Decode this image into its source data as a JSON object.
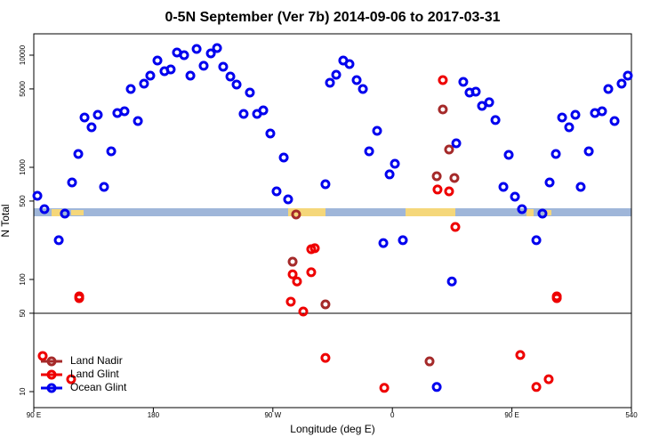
{
  "chart_data": {
    "type": "scatter",
    "title": "0-5N September (Ver 7b)   2014-09-06 to 2017-03-31",
    "x_label": "Longitude (deg E)",
    "y_label": "N Total",
    "ylog": true,
    "legend": "bottom-left",
    "hline": 50,
    "xlim": [
      90,
      540
    ],
    "xticks": [
      {
        "value": 90,
        "label": "90 E"
      },
      180,
      {
        "value": 270,
        "label": "90 W"
      },
      {
        "value": 360,
        "label": "0"
      },
      {
        "value": 450,
        "label": "90 E"
      },
      540
    ],
    "ylim": [
      7.2,
      15500
    ],
    "yticks": [
      10,
      50,
      100,
      500,
      1000,
      5000,
      10000
    ],
    "series": [
      {
        "name": "Land Nadir",
        "color": "#a52a2a",
        "x": [
          287.5,
          284.9,
          309.6,
          388,
          393.4,
          406.7,
          398,
          402.7
        ],
        "values": [
          380,
          144,
          60,
          18.6,
          833,
          803,
          3280,
          1442
        ]
      },
      {
        "name": "Land Glint",
        "color": "#ee0000",
        "x": [
          96.7,
          118.1,
          124.2,
          124.2,
          284.9,
          288.2,
          292.9,
          298.9,
          298.9,
          301.6,
          283.5,
          309.6,
          353.9,
          398,
          394,
          402.7,
          407.4,
          456.3,
          468.4,
          477.7,
          483.8,
          483.8
        ],
        "values": [
          20.8,
          12.9,
          70.7,
          68.2,
          111,
          96,
          51.8,
          116,
          186,
          190,
          63.4,
          20,
          10.8,
          5990,
          634,
          611,
          294,
          21.2,
          11,
          12.9,
          70.7,
          68.2
        ]
      },
      {
        "name": "Ocean Glint",
        "color": "#0000ee",
        "x": [
          92.7,
          98,
          108.8,
          113.4,
          118.8,
          123.5,
          128.2,
          133.5,
          138.2,
          142.9,
          148.3,
          152.9,
          158.3,
          163,
          168.4,
          173,
          177.7,
          183.1,
          188.4,
          193.1,
          197.8,
          203.2,
          207.9,
          212.6,
          217.9,
          223.3,
          228,
          232.6,
          238,
          242.7,
          248,
          252.7,
          258.1,
          262.8,
          268.1,
          272.8,
          278.2,
          281.5,
          309.6,
          313,
          317.7,
          323,
          327.7,
          333.1,
          337.8,
          342.5,
          348.5,
          353.2,
          357.9,
          361.9,
          367.9,
          393.4,
          404.8,
          408.1,
          413.4,
          418.1,
          422.8,
          427.5,
          432.9,
          437.6,
          443.6,
          447.6,
          452.3,
          457.6,
          468.4,
          473,
          478.4,
          483.1,
          487.8,
          493.1,
          497.8,
          501.8,
          507.9,
          512.5,
          517.9,
          522.6,
          527.3,
          532.6,
          537.3
        ],
        "values": [
          557,
          424,
          224,
          387,
          733,
          1315,
          2782,
          2277,
          2940,
          669,
          1390,
          3049,
          3162,
          4990,
          2588,
          5570,
          6570,
          8960,
          7200,
          7460,
          10560,
          10000,
          6570,
          11370,
          8040,
          10370,
          11570,
          7880,
          6450,
          5470,
          2992,
          4640,
          2992,
          3220,
          2003,
          611,
          1222,
          518,
          707,
          5680,
          6690,
          8960,
          8330,
          5990,
          4990,
          1390,
          2115,
          211,
          865,
          1076,
          224,
          11,
          96,
          1639,
          5780,
          4640,
          4730,
          3530,
          3800,
          2640,
          669,
          1291,
          547,
          424,
          224,
          387,
          733,
          1315,
          2782,
          2277,
          2940,
          669,
          1390,
          3049,
          3162,
          4990,
          2588,
          5570,
          6570
        ]
      }
    ]
  }
}
